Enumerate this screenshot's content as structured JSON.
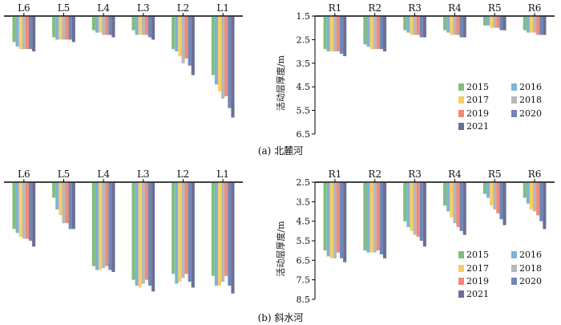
{
  "colors": {
    "2015": "#7fbf7b",
    "2016": "#7fb2d6",
    "2017": "#f6cf65",
    "2018": "#b8b8b8",
    "2019": "#f08a78",
    "2020": "#6f86b7",
    "2021": "#6a6f95"
  },
  "chart_data": [
    {
      "type": "bar",
      "caption": "(a) 北麓河",
      "ylabel": "活动层厚度/m",
      "y_ticks": [
        "1.5",
        "2.5",
        "3.5",
        "4.5",
        "5.5",
        "6.5"
      ],
      "ylim": [
        1.5,
        6.5
      ],
      "y_inverted": true,
      "legend_title": "",
      "series": [
        "2015",
        "2016",
        "2017",
        "2018",
        "2019",
        "2020",
        "2021"
      ],
      "left_categories": [
        "L6",
        "L5",
        "L4",
        "L3",
        "L2",
        "L1"
      ],
      "right_categories": [
        "R1",
        "R2",
        "R3",
        "R4",
        "R5",
        "R6"
      ],
      "left_values": [
        [
          2.6,
          2.8,
          2.9,
          2.9,
          2.9,
          2.9,
          3.0
        ],
        [
          2.4,
          2.5,
          2.5,
          2.5,
          2.5,
          2.5,
          2.6
        ],
        [
          2.1,
          2.2,
          2.2,
          2.3,
          2.3,
          2.3,
          2.4
        ],
        [
          2.1,
          2.3,
          2.3,
          2.3,
          2.3,
          2.4,
          2.5
        ],
        [
          2.9,
          3.0,
          3.2,
          3.5,
          3.3,
          3.6,
          4.0
        ],
        [
          4.0,
          4.4,
          4.7,
          5.0,
          4.9,
          5.4,
          5.8
        ]
      ],
      "right_values": [
        [
          2.9,
          3.0,
          3.0,
          3.0,
          3.0,
          3.1,
          3.2
        ],
        [
          2.7,
          2.8,
          2.9,
          2.9,
          2.9,
          2.9,
          3.0
        ],
        [
          2.1,
          2.2,
          2.3,
          2.3,
          2.3,
          2.4,
          2.4
        ],
        [
          2.1,
          2.2,
          2.3,
          2.3,
          2.3,
          2.4,
          2.4
        ],
        [
          1.9,
          1.9,
          2.0,
          2.0,
          2.0,
          2.1,
          2.1
        ],
        [
          2.1,
          2.2,
          2.2,
          2.2,
          2.3,
          2.3,
          2.3
        ]
      ]
    },
    {
      "type": "bar",
      "caption": "(b) 斜水河",
      "ylabel": "活动层厚度/m",
      "y_ticks": [
        "2.5",
        "3.5",
        "4.5",
        "5.5",
        "6.5",
        "7.5",
        "8.5"
      ],
      "ylim": [
        2.5,
        8.5
      ],
      "y_inverted": true,
      "series": [
        "2015",
        "2016",
        "2017",
        "2018",
        "2019",
        "2020",
        "2021"
      ],
      "left_categories": [
        "L6",
        "L5",
        "L4",
        "L3",
        "L2",
        "L1"
      ],
      "right_categories": [
        "R1",
        "R2",
        "R3",
        "R4",
        "R5",
        "R6"
      ],
      "left_values": [
        [
          4.9,
          5.1,
          5.3,
          5.4,
          5.4,
          5.5,
          5.8
        ],
        [
          3.3,
          3.9,
          4.2,
          4.6,
          4.6,
          4.9,
          4.9
        ],
        [
          6.8,
          7.0,
          7.0,
          6.9,
          6.8,
          7.0,
          7.1
        ],
        [
          7.5,
          7.8,
          7.9,
          7.7,
          7.5,
          7.8,
          8.1
        ],
        [
          7.2,
          7.7,
          7.6,
          7.4,
          7.2,
          7.6,
          7.9
        ],
        [
          7.3,
          7.8,
          7.8,
          7.6,
          7.3,
          7.8,
          8.2
        ]
      ],
      "right_values": [
        [
          6.0,
          6.3,
          6.4,
          6.4,
          6.1,
          6.4,
          6.6
        ],
        [
          6.0,
          6.1,
          6.1,
          6.1,
          6.0,
          6.2,
          6.4
        ],
        [
          4.5,
          4.8,
          5.0,
          5.2,
          5.3,
          5.5,
          5.8
        ],
        [
          3.7,
          4.0,
          4.3,
          4.6,
          4.8,
          5.0,
          5.2
        ],
        [
          3.1,
          3.3,
          3.7,
          3.9,
          4.1,
          4.4,
          4.7
        ],
        [
          3.3,
          3.6,
          3.9,
          4.0,
          4.2,
          4.5,
          4.9
        ]
      ]
    }
  ]
}
